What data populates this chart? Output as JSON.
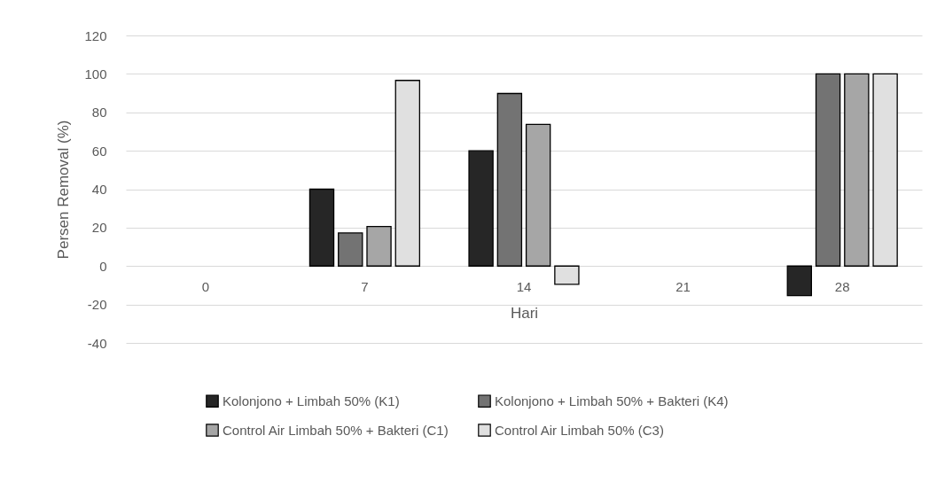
{
  "chart_data": {
    "type": "bar",
    "xlabel": "Hari",
    "ylabel": "Persen Removal (%)",
    "categories": [
      "0",
      "7",
      "14",
      "21",
      "28"
    ],
    "series": [
      {
        "name": "Kolonjono + Limbah 50% (K1)",
        "color": "#262626",
        "values": [
          null,
          40,
          60,
          null,
          -15.4
        ]
      },
      {
        "name": "Kolonjono + Limbah 50% + Bakteri (K4)",
        "color": "#737373",
        "values": [
          null,
          17.2,
          89.8,
          null,
          100
        ]
      },
      {
        "name": "Control Air Limbah 50% + Bakteri (C1)",
        "color": "#a6a6a6",
        "values": [
          null,
          20.6,
          73.7,
          null,
          100
        ]
      },
      {
        "name": "Control Air Limbah 50% (C3)",
        "color": "#e0e0e0",
        "values": [
          null,
          96.6,
          -9.5,
          null,
          100
        ]
      }
    ],
    "ylim": [
      -40,
      120
    ],
    "yticks": [
      -40,
      -20,
      0,
      20,
      40,
      60,
      80,
      100,
      120
    ],
    "grid": "y",
    "legend": "bottom"
  }
}
